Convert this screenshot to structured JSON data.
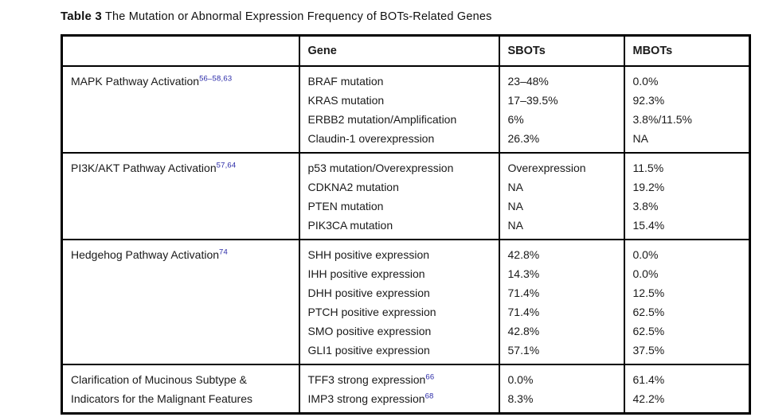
{
  "title": {
    "label": "Table 3",
    "text": " The Mutation or Abnormal Expression Frequency of BOTs-Related Genes"
  },
  "table": {
    "columns": [
      {
        "label": ""
      },
      {
        "label": "Gene"
      },
      {
        "label": "SBOTs"
      },
      {
        "label": "MBOTs"
      }
    ],
    "sections": [
      {
        "category_lines": [
          "MAPK Pathway Activation"
        ],
        "category_ref": "56–58,63",
        "rows": [
          {
            "gene": "BRAF mutation",
            "gene_ref": "",
            "sbots": "23–48%",
            "mbots": "0.0%"
          },
          {
            "gene": "KRAS mutation",
            "gene_ref": "",
            "sbots": "17–39.5%",
            "mbots": "92.3%"
          },
          {
            "gene": "ERBB2 mutation/Amplification",
            "gene_ref": "",
            "sbots": "6%",
            "mbots": "3.8%/11.5%"
          },
          {
            "gene": "Claudin-1 overexpression",
            "gene_ref": "",
            "sbots": "26.3%",
            "mbots": "NA"
          }
        ]
      },
      {
        "category_lines": [
          "PI3K/AKT Pathway Activation"
        ],
        "category_ref": "57,64",
        "rows": [
          {
            "gene": "p53 mutation/Overexpression",
            "gene_ref": "",
            "sbots": "Overexpression",
            "mbots": "11.5%"
          },
          {
            "gene": "CDKNA2 mutation",
            "gene_ref": "",
            "sbots": "NA",
            "mbots": "19.2%"
          },
          {
            "gene": "PTEN mutation",
            "gene_ref": "",
            "sbots": "NA",
            "mbots": "3.8%"
          },
          {
            "gene": "PIK3CA mutation",
            "gene_ref": "",
            "sbots": "NA",
            "mbots": "15.4%"
          }
        ]
      },
      {
        "category_lines": [
          "Hedgehog Pathway Activation"
        ],
        "category_ref": "74",
        "rows": [
          {
            "gene": "SHH positive expression",
            "gene_ref": "",
            "sbots": "42.8%",
            "mbots": "0.0%"
          },
          {
            "gene": "IHH positive expression",
            "gene_ref": "",
            "sbots": "14.3%",
            "mbots": "0.0%"
          },
          {
            "gene": "DHH positive expression",
            "gene_ref": "",
            "sbots": "71.4%",
            "mbots": "12.5%"
          },
          {
            "gene": "PTCH positive expression",
            "gene_ref": "",
            "sbots": "71.4%",
            "mbots": "62.5%"
          },
          {
            "gene": "SMO positive expression",
            "gene_ref": "",
            "sbots": "42.8%",
            "mbots": "62.5%"
          },
          {
            "gene": "GLI1 positive expression",
            "gene_ref": "",
            "sbots": "57.1%",
            "mbots": "37.5%"
          }
        ]
      },
      {
        "category_lines": [
          "Clarification of Mucinous Subtype &",
          "Indicators for the Malignant Features"
        ],
        "category_ref": "",
        "rows": [
          {
            "gene": "TFF3 strong expression",
            "gene_ref": "66",
            "sbots": "0.0%",
            "mbots": "61.4%"
          },
          {
            "gene": "IMP3 strong expression",
            "gene_ref": "68",
            "sbots": "8.3%",
            "mbots": "42.2%"
          }
        ]
      }
    ]
  },
  "colors": {
    "reference_blue": "#2b2ba8",
    "border_black": "#000000",
    "text_black": "#1a1a1a",
    "background": "#ffffff"
  }
}
